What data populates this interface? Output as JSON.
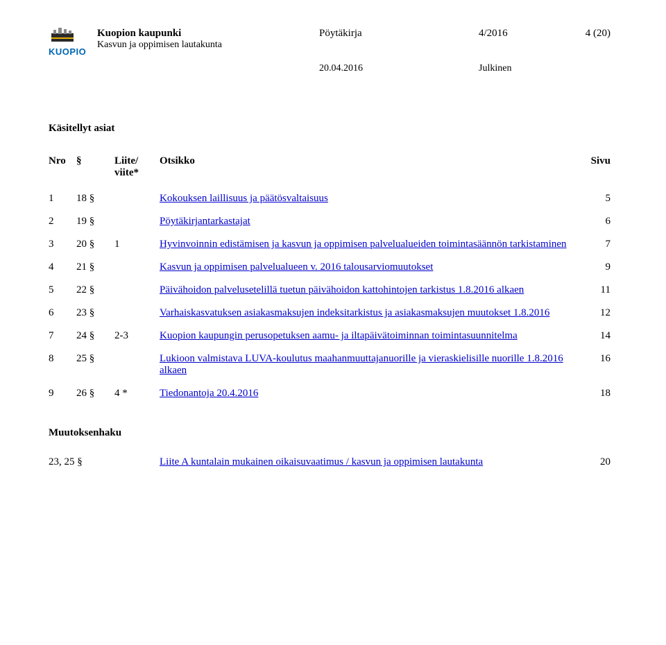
{
  "header": {
    "org_name": "Kuopion kaupunki",
    "doc_type": "Pöytäkirja",
    "doc_number": "4/2016",
    "page_number": "4 (20)",
    "subtitle": "Kasvun ja oppimisen lautakunta",
    "date": "20.04.2016",
    "public": "Julkinen",
    "logo_text": "KUOPIO",
    "logo_color": "#0066b3"
  },
  "section_heading": "Käsitellyt asiat",
  "columns": {
    "nro": "Nro",
    "sec": "§",
    "liite": "Liite/\nviite*",
    "title": "Otsikko",
    "sivu": "Sivu"
  },
  "items": [
    {
      "nro": "1",
      "sec": "18 §",
      "liite": "",
      "title": "Kokouksen laillisuus ja päätösvaltaisuus",
      "page": "5"
    },
    {
      "nro": "2",
      "sec": "19 §",
      "liite": "",
      "title": "Pöytäkirjantarkastajat",
      "page": "6"
    },
    {
      "nro": "3",
      "sec": "20 §",
      "liite": "1",
      "title": "Hyvinvoinnin edistämisen ja kasvun ja oppimisen palvelualueiden toimintasäännön tarkistaminen",
      "page": "7"
    },
    {
      "nro": "4",
      "sec": "21 §",
      "liite": "",
      "title": "Kasvun ja oppimisen palvelualueen v. 2016 talousarviomuutokset",
      "page": "9"
    },
    {
      "nro": "5",
      "sec": "22 §",
      "liite": "",
      "title": "Päivähoidon palvelusetelillä tuetun päivähoidon kattohintojen tarkistus 1.8.2016 alkaen",
      "page": "11"
    },
    {
      "nro": "6",
      "sec": "23 §",
      "liite": "",
      "title": "Varhaiskasvatuksen asiakasmaksujen indeksitarkistus ja asiakasmaksujen muutokset 1.8.2016",
      "page": "12"
    },
    {
      "nro": "7",
      "sec": "24 §",
      "liite": "2-3",
      "title": "Kuopion kaupungin perusopetuksen aamu- ja iltapäivätoiminnan toimintasuunnitelma",
      "page": "14"
    },
    {
      "nro": "8",
      "sec": "25 §",
      "liite": "",
      "title": "Lukioon valmistava LUVA-koulutus maahanmuuttajanuorille ja vieraskielisille nuorille 1.8.2016 alkaen",
      "page": "16"
    },
    {
      "nro": "9",
      "sec": "26 §",
      "liite": "4 *",
      "title": "Tiedonantoja 20.4.2016",
      "page": "18"
    }
  ],
  "muutoksenhaku": {
    "heading": "Muutoksenhaku",
    "ref": "23, 25 §",
    "title": "Liite A kuntalain mukainen oikaisuvaatimus / kasvun ja oppimisen lautakunta",
    "page": "20"
  },
  "colors": {
    "link": "#0000cc",
    "text": "#000000",
    "background": "#ffffff"
  }
}
